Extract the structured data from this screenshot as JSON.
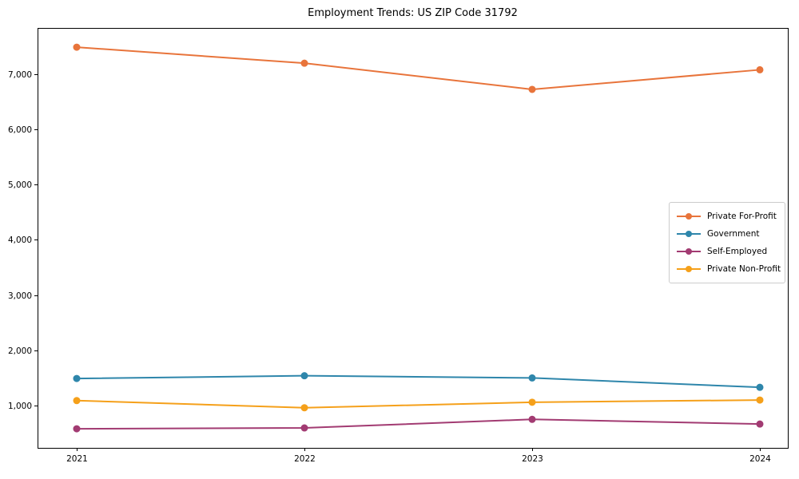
{
  "page": {
    "background": "#ffffff"
  },
  "chart_data": {
    "type": "line",
    "title": "Employment Trends: US ZIP Code 31792",
    "x": [
      "2021",
      "2022",
      "2023",
      "2024"
    ],
    "series": [
      {
        "name": "Private For-Profit",
        "color": "#E8743B",
        "values": [
          7490,
          7200,
          6725,
          7080
        ]
      },
      {
        "name": "Government",
        "color": "#2E86AB",
        "values": [
          1490,
          1540,
          1500,
          1330
        ]
      },
      {
        "name": "Self-Employed",
        "color": "#A23B72",
        "values": [
          580,
          595,
          750,
          665
        ]
      },
      {
        "name": "Private Non-Profit",
        "color": "#F5A01A",
        "values": [
          1090,
          960,
          1060,
          1100
        ]
      }
    ],
    "xlabel": "",
    "ylabel": "",
    "ylim": [
      234,
      7838
    ],
    "ytick_values": [
      1000,
      2000,
      3000,
      4000,
      5000,
      6000,
      7000
    ],
    "ytick_labels": [
      "1,000",
      "2,000",
      "3,000",
      "4,000",
      "5,000",
      "6,000",
      "7,000"
    ],
    "xtick_labels": [
      "2021",
      "2022",
      "2023",
      "2024"
    ],
    "legend_position": "center right",
    "grid": false,
    "axis_color": "#000000",
    "tick_label_color": "#000000",
    "legend_border_color": "#cccccc"
  }
}
